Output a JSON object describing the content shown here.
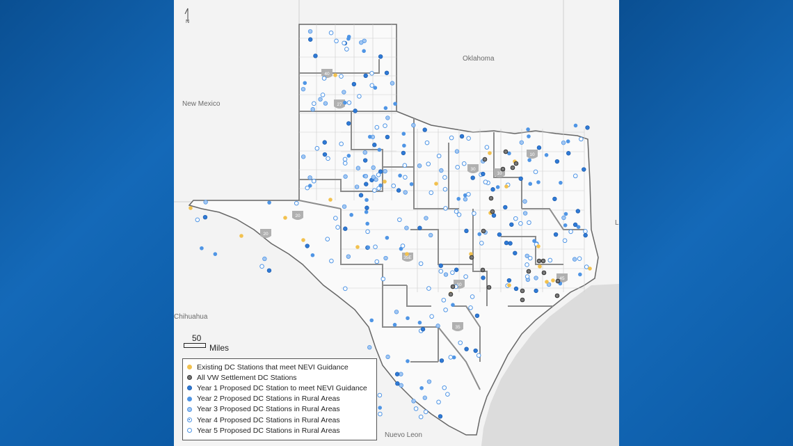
{
  "labels": {
    "oklahoma": "Oklahoma",
    "new_mexico": "New Mexico",
    "chihuahua": "Chihuahua",
    "nuevo_leon": "Nuevo Leon",
    "louisiana_partial": "L"
  },
  "compass": {
    "letter": "N"
  },
  "scale": {
    "value": "50",
    "unit": "Miles"
  },
  "highways": [
    "40",
    "27",
    "20",
    "20",
    "35E",
    "30",
    "10",
    "10",
    "10",
    "35",
    "45"
  ],
  "legend": {
    "items": [
      {
        "label": "Existing DC Stations that meet NEVI Guidance",
        "symbol": "existing"
      },
      {
        "label": "All VW Settlement DC Stations",
        "symbol": "vw"
      },
      {
        "label": "Year 1 Proposed DC Station to meet NEVI Guidance",
        "symbol": "y1"
      },
      {
        "label": "Year 2 Proposed DC Stations in Rural Areas",
        "symbol": "y2"
      },
      {
        "label": "Year 3 Proposed DC Stations in Rural Areas",
        "symbol": "y3"
      },
      {
        "label": "Year 4 Proposed DC Stations in Rural Areas",
        "symbol": "y4"
      },
      {
        "label": "Year 5 Proposed DC Stations in Rural Areas",
        "symbol": "y5"
      }
    ]
  },
  "colors": {
    "existing": "#f2c14e",
    "vw": "#7a7a7a",
    "year1": "#2f7ad6",
    "year2": "#4f95e5",
    "year3": "#a3c7f2",
    "water": "#d9d9d9",
    "state_fill": "#fafafa",
    "district_border": "#8c8c8c",
    "background_blue": "#0d5ea8"
  }
}
